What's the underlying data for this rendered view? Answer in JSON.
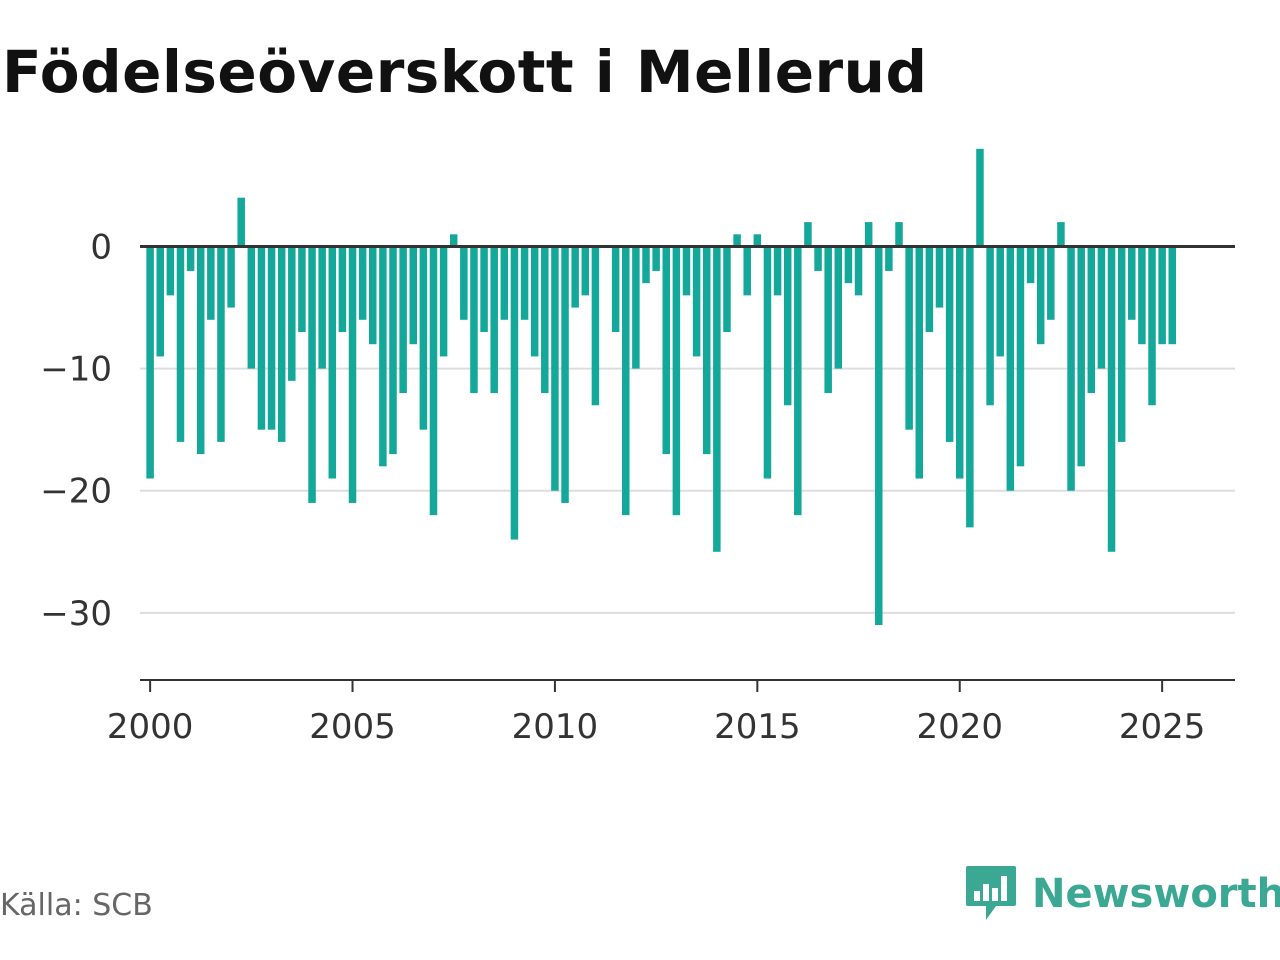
{
  "title": "Födelseöverskott i Mellerud",
  "source": "Källa: SCB",
  "brand": {
    "name": "Newsworthy",
    "icon": "newsworthy-logo-icon",
    "color": "#3aa892"
  },
  "chart_data": {
    "type": "bar",
    "title": "Födelseöverskott i Mellerud",
    "xlabel": "",
    "ylabel": "",
    "bar_color": "#14a89a",
    "grid": true,
    "x_start": 2000.0,
    "x_step": 0.25,
    "xlim": [
      1999.75,
      2026.8
    ],
    "ylim": [
      -35.5,
      12
    ],
    "yticks": [
      0,
      -10,
      -20,
      -30
    ],
    "ytick_labels": [
      "0",
      "−10",
      "−20",
      "−30"
    ],
    "xticks": [
      2000,
      2005,
      2010,
      2015,
      2020,
      2025
    ],
    "xtick_labels": [
      "2000",
      "2005",
      "2010",
      "2015",
      "2020",
      "2025"
    ],
    "values": [
      -19,
      -9,
      -4,
      -16,
      -2,
      -17,
      -6,
      -16,
      -5,
      4,
      -10,
      -15,
      -15,
      -16,
      -11,
      -7,
      -21,
      -10,
      -19,
      -7,
      -21,
      -6,
      -8,
      -18,
      -17,
      -12,
      -8,
      -15,
      -22,
      -9,
      1,
      -6,
      -12,
      -7,
      -12,
      -6,
      -24,
      -6,
      -9,
      -12,
      -20,
      -21,
      -5,
      -4,
      -13,
      0,
      -7,
      -22,
      -10,
      -3,
      -2,
      -17,
      -22,
      -4,
      -9,
      -17,
      -25,
      -7,
      1,
      -4,
      1,
      -19,
      -4,
      -13,
      -22,
      2,
      -2,
      -12,
      -10,
      -3,
      -4,
      2,
      -31,
      -2,
      2,
      -15,
      -19,
      -7,
      -5,
      -16,
      -19,
      -23,
      8,
      -13,
      -9,
      -20,
      -18,
      -3,
      -8,
      -6,
      2,
      -20,
      -18,
      -12,
      -10,
      -25,
      -16,
      -6,
      -8,
      -13,
      -8,
      -8
    ]
  }
}
